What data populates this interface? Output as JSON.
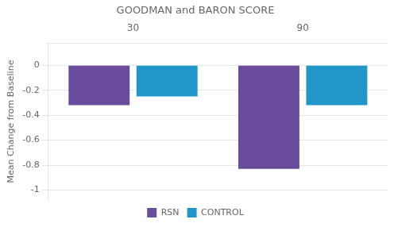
{
  "chart_data": {
    "type": "bar",
    "title": "GOODMAN and BARON SCORE",
    "ylabel": "Mean Change from Baseline",
    "categories": [
      "30",
      "90"
    ],
    "series": [
      {
        "name": "RSN",
        "color": "#6A4C9C",
        "values": [
          -0.32,
          -0.83
        ]
      },
      {
        "name": "CONTROL",
        "color": "#2196C9",
        "values": [
          -0.25,
          -0.32
        ]
      }
    ],
    "ylim": [
      -1.08,
      0.18
    ],
    "yticks": [
      0,
      -0.2,
      -0.4,
      -0.6,
      -0.8,
      -1
    ],
    "grid": true,
    "legend": "bottom"
  }
}
